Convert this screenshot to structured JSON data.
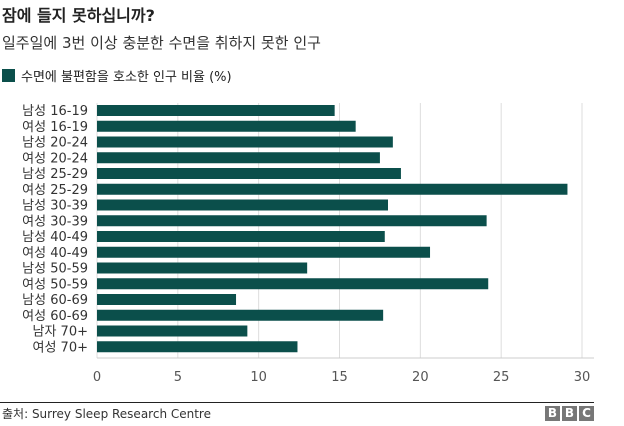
{
  "chart_data": {
    "type": "bar",
    "orientation": "horizontal",
    "title": "잠에 들지 못하십니까?",
    "subtitle": "일주일에 3번 이상 충분한 수면을 취하지 못한 인구",
    "categories": [
      "남성 16-19",
      "여성 16-19",
      "남성 20-24",
      "여성 20-24",
      "남성 25-29",
      "여성 25-29",
      "남성 30-39",
      "여성 30-39",
      "남성 40-49",
      "여성 40-49",
      "남성 50-59",
      "여성 50-59",
      "남성 60-69",
      "여성 60-69",
      "남자 70+",
      "여성 70+"
    ],
    "series": [
      {
        "name": "수면에 불편함을 호소한 인구 비율 (%)",
        "color": "#0b4f4b",
        "values": [
          14.7,
          16.0,
          18.3,
          17.5,
          18.8,
          29.1,
          18.0,
          24.1,
          17.8,
          20.6,
          13.0,
          24.2,
          8.6,
          17.7,
          9.3,
          12.4
        ]
      }
    ],
    "xlim": [
      0,
      30
    ],
    "xticks": [
      "0",
      "5",
      "10",
      "15",
      "20",
      "25",
      "30"
    ],
    "grid": true,
    "legend": "top-left"
  },
  "footer": {
    "source": "출처: Surrey Sleep Research Centre",
    "logo": [
      "B",
      "B",
      "C"
    ]
  }
}
